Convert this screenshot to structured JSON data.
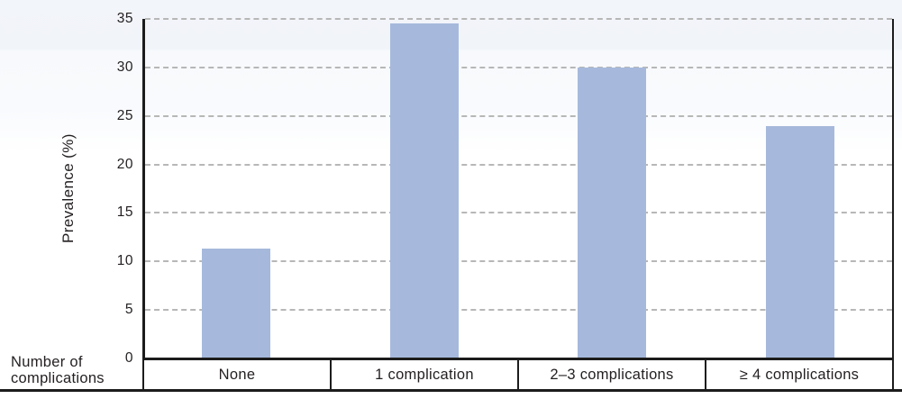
{
  "chart_data": {
    "type": "bar",
    "categories": [
      "None",
      "1 complication",
      "2–3 complications",
      "≥ 4 complications"
    ],
    "values": [
      11.3,
      34.5,
      30,
      24
    ],
    "title": "",
    "xlabel": "Number of complications",
    "ylabel": "Prevalence (%)",
    "ylim": [
      0,
      35
    ],
    "yticks": [
      0,
      5,
      10,
      15,
      20,
      25,
      30,
      35
    ],
    "grid": "horizontal-dashed",
    "legend_position": "none",
    "bar_color": "#a6b9dc"
  },
  "labels": {
    "y_axis": "Prevalence (%)",
    "x_axis_line1": "Number of",
    "x_axis_line2": "complications"
  },
  "colors": {
    "bar_fill": "#a6b9dc",
    "axis": "#1c1c1c",
    "gridline": "#b7b7b7",
    "text": "#231f20",
    "background_top": "#f2f5f9",
    "background_bottom": "#ffffff"
  }
}
